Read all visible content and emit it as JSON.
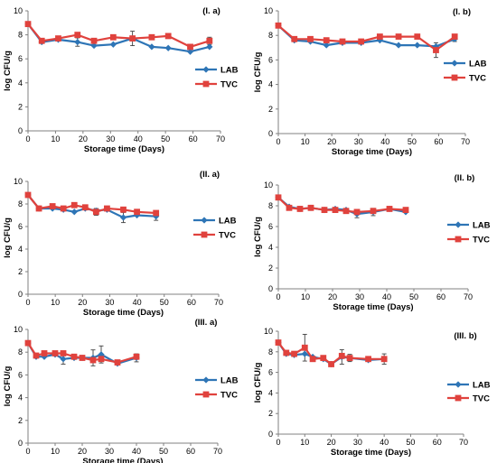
{
  "colors": {
    "LAB": "#2E75B6",
    "TVC": "#E0423D",
    "axis": "#808080",
    "error": "#404040"
  },
  "chart_data": [
    {
      "type": "line",
      "panel_label": "(I. a)",
      "xlabel": "Storage time (Days)",
      "ylabel": "log CFU/g",
      "xlim": [
        0,
        70
      ],
      "ylim": [
        0,
        10
      ],
      "xticks": [
        "0",
        "10",
        "20",
        "30",
        "40",
        "50",
        "60",
        "70"
      ],
      "yticks": [
        "0",
        "2",
        "4",
        "6",
        "8",
        "10"
      ],
      "legend_position": "right",
      "series": [
        {
          "name": "LAB",
          "marker": "diamond",
          "x": [
            0,
            5,
            11,
            18,
            24,
            31,
            38,
            45,
            51,
            59,
            66
          ],
          "y": [
            8.9,
            7.4,
            7.6,
            7.4,
            7.1,
            7.2,
            7.7,
            7.0,
            6.9,
            6.6,
            7.0
          ]
        },
        {
          "name": "TVC",
          "marker": "square",
          "x": [
            0,
            5,
            11,
            18,
            24,
            31,
            38,
            45,
            51,
            59,
            66
          ],
          "y": [
            8.9,
            7.5,
            7.7,
            8.0,
            7.5,
            7.8,
            7.7,
            7.8,
            7.9,
            7.0,
            7.5
          ]
        }
      ]
    },
    {
      "type": "line",
      "panel_label": "(I. b)",
      "xlabel": "Storage time (Days)",
      "ylabel": "log CFU/g",
      "xlim": [
        0,
        70
      ],
      "ylim": [
        0,
        10
      ],
      "xticks": [
        "0",
        "10",
        "20",
        "30",
        "40",
        "50",
        "60",
        "70"
      ],
      "yticks": [
        "0",
        "2",
        "4",
        "6",
        "8",
        "10"
      ],
      "legend_position": "right",
      "series": [
        {
          "name": "LAB",
          "marker": "diamond",
          "x": [
            0,
            6,
            12,
            18,
            24,
            31,
            38,
            45,
            52,
            59,
            66
          ],
          "y": [
            8.8,
            7.6,
            7.5,
            7.2,
            7.4,
            7.4,
            7.6,
            7.2,
            7.2,
            7.1,
            7.7
          ]
        },
        {
          "name": "TVC",
          "marker": "square",
          "x": [
            0,
            6,
            12,
            18,
            24,
            31,
            38,
            45,
            52,
            59,
            66
          ],
          "y": [
            8.8,
            7.7,
            7.7,
            7.6,
            7.5,
            7.5,
            7.9,
            7.9,
            7.9,
            6.8,
            7.9
          ]
        }
      ]
    },
    {
      "type": "line",
      "panel_label": "(II. a)",
      "xlabel": "Storage time (Days)",
      "ylabel": "log CFU/g",
      "xlim": [
        0,
        70
      ],
      "ylim": [
        0,
        10
      ],
      "xticks": [
        "0",
        "10",
        "20",
        "30",
        "40",
        "50",
        "60",
        "70"
      ],
      "yticks": [
        "0",
        "2",
        "4",
        "6",
        "8",
        "10"
      ],
      "legend_position": "right",
      "series": [
        {
          "name": "LAB",
          "marker": "diamond",
          "x": [
            0,
            4,
            9,
            13,
            17,
            21,
            25,
            29,
            35,
            40,
            47
          ],
          "y": [
            8.8,
            7.6,
            7.6,
            7.5,
            7.3,
            7.6,
            7.4,
            7.5,
            6.8,
            7.0,
            6.9
          ]
        },
        {
          "name": "TVC",
          "marker": "square",
          "x": [
            0,
            4,
            9,
            13,
            17,
            21,
            25,
            29,
            35,
            40,
            47
          ],
          "y": [
            8.8,
            7.6,
            7.8,
            7.6,
            7.9,
            7.7,
            7.3,
            7.6,
            7.5,
            7.3,
            7.2
          ]
        }
      ]
    },
    {
      "type": "line",
      "panel_label": "(II. b)",
      "xlabel": "Storage time (Days)",
      "ylabel": "log CFU/g",
      "xlim": [
        0,
        70
      ],
      "ylim": [
        0,
        10
      ],
      "xticks": [
        "0",
        "10",
        "20",
        "30",
        "40",
        "50",
        "60",
        "70"
      ],
      "yticks": [
        "0",
        "2",
        "4",
        "6",
        "8",
        "10"
      ],
      "legend_position": "right",
      "series": [
        {
          "name": "LAB",
          "marker": "diamond",
          "x": [
            0,
            4,
            8,
            12,
            17,
            21,
            25,
            29,
            35,
            41,
            47
          ],
          "y": [
            8.8,
            7.9,
            7.7,
            7.8,
            7.6,
            7.7,
            7.6,
            7.2,
            7.4,
            7.7,
            7.4
          ]
        },
        {
          "name": "TVC",
          "marker": "square",
          "x": [
            0,
            4,
            8,
            12,
            17,
            21,
            25,
            29,
            35,
            41,
            47
          ],
          "y": [
            8.8,
            7.8,
            7.7,
            7.8,
            7.6,
            7.6,
            7.5,
            7.4,
            7.5,
            7.7,
            7.6
          ]
        }
      ]
    },
    {
      "type": "line",
      "panel_label": "(III. a)",
      "xlabel": "Storage time (Days)",
      "ylabel": "log CFU/g",
      "xlim": [
        0,
        70
      ],
      "ylim": [
        0,
        10
      ],
      "xticks": [
        "0",
        "10",
        "20",
        "30",
        "40",
        "50",
        "60",
        "70"
      ],
      "yticks": [
        "0",
        "2",
        "4",
        "6",
        "8",
        "10"
      ],
      "legend_position": "right",
      "series": [
        {
          "name": "LAB",
          "marker": "diamond",
          "x": [
            0,
            3,
            6,
            10,
            13,
            17,
            20,
            24,
            27,
            33,
            40
          ],
          "y": [
            8.8,
            7.6,
            7.6,
            7.8,
            7.4,
            7.5,
            7.5,
            7.5,
            7.8,
            7.0,
            7.5
          ]
        },
        {
          "name": "TVC",
          "marker": "square",
          "x": [
            0,
            3,
            6,
            10,
            13,
            17,
            20,
            24,
            27,
            33,
            40
          ],
          "y": [
            8.8,
            7.7,
            7.9,
            7.9,
            7.9,
            7.6,
            7.5,
            7.3,
            7.4,
            7.1,
            7.6
          ]
        }
      ]
    },
    {
      "type": "line",
      "panel_label": "(III. b)",
      "xlabel": "Storage time (Days)",
      "ylabel": "log CFU/g",
      "xlim": [
        0,
        70
      ],
      "ylim": [
        0,
        10
      ],
      "xticks": [
        "0",
        "10",
        "20",
        "30",
        "40",
        "50",
        "60",
        "70"
      ],
      "yticks": [
        "0",
        "2",
        "4",
        "6",
        "8",
        "10"
      ],
      "legend_position": "right",
      "series": [
        {
          "name": "LAB",
          "marker": "diamond",
          "x": [
            0,
            3,
            6,
            10,
            13,
            17,
            20,
            24,
            27,
            34,
            40
          ],
          "y": [
            8.9,
            7.8,
            7.7,
            7.8,
            7.5,
            7.3,
            6.8,
            7.5,
            7.4,
            7.2,
            7.3
          ]
        },
        {
          "name": "TVC",
          "marker": "square",
          "x": [
            0,
            3,
            6,
            10,
            13,
            17,
            20,
            24,
            27,
            34,
            40
          ],
          "y": [
            8.9,
            7.9,
            7.8,
            8.4,
            7.3,
            7.4,
            6.8,
            7.6,
            7.4,
            7.3,
            7.3
          ]
        }
      ]
    }
  ]
}
